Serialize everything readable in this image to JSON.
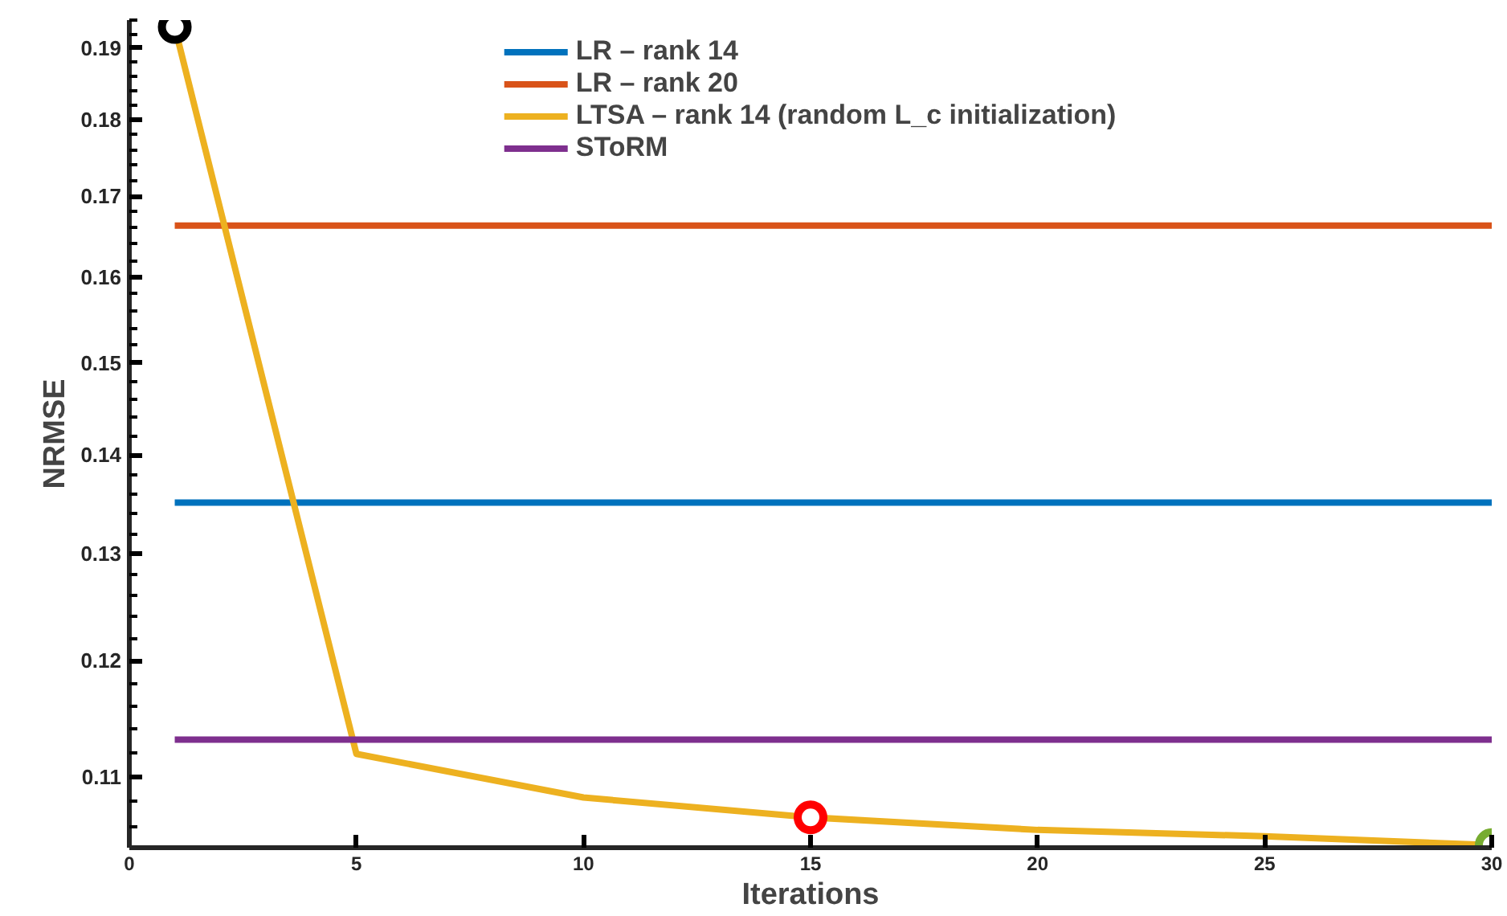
{
  "chart_data": {
    "type": "line",
    "xlabel": "Iterations",
    "ylabel": "NRMSE",
    "xlim": [
      0,
      30
    ],
    "xticks": [
      0,
      5,
      10,
      15,
      20,
      25,
      30
    ],
    "ylim": [
      0.1043,
      0.194
    ],
    "yticks": [
      0.11,
      0.12,
      0.13,
      0.14,
      0.15,
      0.16,
      0.17,
      0.18,
      0.19
    ],
    "log": "y",
    "grid": false,
    "legend": "top",
    "marker": "none",
    "line_style": "solid",
    "series": [
      {
        "name": "LR – rank 14",
        "color": "#0072bd",
        "x": [
          1,
          30
        ],
        "values": [
          0.1351,
          0.1351
        ]
      },
      {
        "name": "LR – rank 20",
        "color": "#d95319",
        "x": [
          1,
          30
        ],
        "values": [
          0.1663,
          0.1663
        ]
      },
      {
        "name": "LTSA – rank 14 (random L_c initialization)",
        "color": "#edb120",
        "x": [
          1,
          5,
          10,
          15,
          20,
          25,
          30
        ],
        "values": [
          0.193,
          0.1119,
          0.1083,
          0.1067,
          0.1057,
          0.1052,
          0.1045
        ]
      },
      {
        "name": "SToRM",
        "color": "#7e2f8e",
        "x": [
          1,
          30
        ],
        "values": [
          0.1131,
          0.1131
        ]
      },
      {
        "type": "scatter",
        "marker": "circle",
        "x": [
          1,
          15,
          30
        ],
        "values": [
          0.193,
          0.1067,
          0.1045
        ],
        "colors": [
          "#000000",
          "#ff0000",
          "#77ac30"
        ]
      }
    ]
  }
}
